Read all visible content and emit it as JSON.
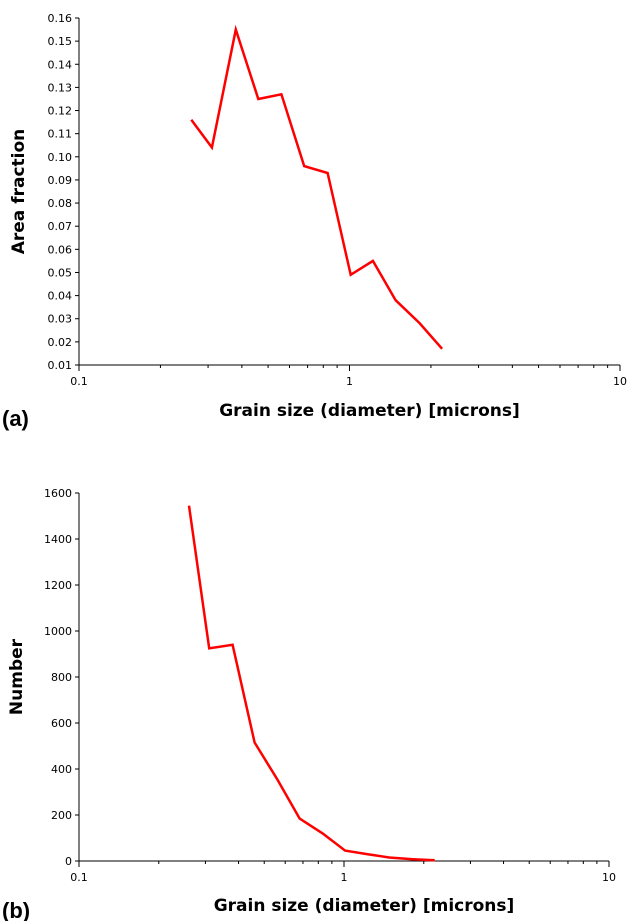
{
  "chart_data": [
    {
      "type": "line",
      "panel_label": "(a)",
      "xlabel": "Grain size (diameter) [microns]",
      "ylabel": "Area fraction",
      "xscale": "log",
      "xlim": [
        0.1,
        10
      ],
      "ylim": [
        0.01,
        0.16
      ],
      "x_ticks": [
        "0.1",
        "1",
        "10"
      ],
      "y_ticks": [
        "0.01",
        "0.02",
        "0.03",
        "0.04",
        "0.05",
        "0.06",
        "0.07",
        "0.08",
        "0.09",
        "0.10",
        "0.11",
        "0.12",
        "0.13",
        "0.14",
        "0.15",
        "0.16"
      ],
      "grid": false,
      "series": [
        {
          "color": "#ff0000",
          "x": [
            0.26,
            0.31,
            0.38,
            0.46,
            0.56,
            0.68,
            0.83,
            1.01,
            1.22,
            1.48,
            1.82,
            2.2
          ],
          "y": [
            0.116,
            0.104,
            0.155,
            0.125,
            0.127,
            0.096,
            0.093,
            0.049,
            0.055,
            0.038,
            0.028,
            0.017
          ]
        }
      ]
    },
    {
      "type": "line",
      "panel_label": "(b)",
      "xlabel": "Grain size (diameter) [microns]",
      "ylabel": "Number",
      "xscale": "log",
      "xlim": [
        0.1,
        10
      ],
      "ylim": [
        0,
        1600
      ],
      "x_ticks": [
        "0.1",
        "1",
        "10"
      ],
      "y_ticks": [
        "0",
        "200",
        "400",
        "600",
        "800",
        "1000",
        "1200",
        "1400",
        "1600"
      ],
      "grid": false,
      "series": [
        {
          "color": "#ff0000",
          "x": [
            0.26,
            0.31,
            0.38,
            0.46,
            0.56,
            0.68,
            0.83,
            1.01,
            1.22,
            1.48,
            1.82,
            2.2
          ],
          "y": [
            1545,
            925,
            940,
            515,
            355,
            185,
            120,
            45,
            30,
            15,
            8,
            3
          ]
        }
      ]
    }
  ]
}
